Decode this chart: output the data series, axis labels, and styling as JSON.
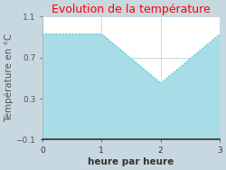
{
  "title": "Evolution de la température",
  "title_color": "#ff0000",
  "xlabel": "heure par heure",
  "ylabel": "Température en °C",
  "x": [
    0,
    1,
    2,
    3
  ],
  "y": [
    0.93,
    0.93,
    0.45,
    0.93
  ],
  "ylim": [
    -0.1,
    1.1
  ],
  "xlim": [
    0,
    3
  ],
  "yticks": [
    -0.1,
    0.3,
    0.7,
    1.1
  ],
  "xticks": [
    0,
    1,
    2,
    3
  ],
  "line_color": "#4dc8d8",
  "fill_color": "#a8dde8",
  "fill_alpha": 1.0,
  "outer_bg_color": "#c8d8e0",
  "plot_bg_color": "#ffffff",
  "grid_color": "#c8d8e4",
  "title_fontsize": 9,
  "axis_label_fontsize": 7.5,
  "tick_fontsize": 6.5
}
